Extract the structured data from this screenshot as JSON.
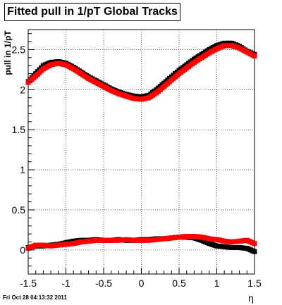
{
  "chart_data": {
    "type": "scatter",
    "title": "Fitted pull in 1/pT  Global Tracks",
    "xlabel": "η",
    "ylabel": "pull in 1/pT",
    "xlim": [
      -1.5,
      1.5
    ],
    "ylim": [
      -0.3,
      2.75
    ],
    "grid": true,
    "xticks": [
      -1.5,
      -1,
      -0.5,
      0,
      0.5,
      1,
      1.5
    ],
    "xtick_labels": [
      "-1.5",
      "-1",
      "-0.5",
      "0",
      "0.5",
      "1",
      "1.5"
    ],
    "yticks": [
      0,
      0.5,
      1,
      1.5,
      2,
      2.5
    ],
    "ytick_labels": [
      "0",
      "0.5",
      "1",
      "1.5",
      "2",
      "2.5"
    ],
    "series": [
      {
        "color": "#000000",
        "marker": "square",
        "x": [
          -1.5,
          -1.4,
          -1.3,
          -1.2,
          -1.1,
          -1.0,
          -0.9,
          -0.8,
          -0.7,
          -0.6,
          -0.5,
          -0.4,
          -0.3,
          -0.2,
          -0.1,
          0.0,
          0.1,
          0.2,
          0.3,
          0.4,
          0.5,
          0.6,
          0.7,
          0.8,
          0.9,
          1.0,
          1.1,
          1.2,
          1.3,
          1.4,
          1.5
        ],
        "y": [
          2.1,
          2.2,
          2.3,
          2.34,
          2.35,
          2.33,
          2.28,
          2.22,
          2.16,
          2.11,
          2.06,
          2.01,
          1.97,
          1.94,
          1.92,
          1.91,
          1.93,
          2.0,
          2.08,
          2.16,
          2.24,
          2.31,
          2.38,
          2.44,
          2.5,
          2.55,
          2.58,
          2.58,
          2.54,
          2.48,
          2.44
        ]
      },
      {
        "color": "#ff0000",
        "marker": "square",
        "x": [
          -1.5,
          -1.4,
          -1.3,
          -1.2,
          -1.1,
          -1.0,
          -0.9,
          -0.8,
          -0.7,
          -0.6,
          -0.5,
          -0.4,
          -0.3,
          -0.2,
          -0.1,
          0.0,
          0.1,
          0.2,
          0.3,
          0.4,
          0.5,
          0.6,
          0.7,
          0.8,
          0.9,
          1.0,
          1.1,
          1.2,
          1.3,
          1.4,
          1.5
        ],
        "y": [
          2.09,
          2.17,
          2.26,
          2.31,
          2.33,
          2.31,
          2.26,
          2.2,
          2.14,
          2.09,
          2.04,
          1.99,
          1.95,
          1.92,
          1.89,
          1.88,
          1.9,
          1.96,
          2.04,
          2.12,
          2.2,
          2.27,
          2.34,
          2.4,
          2.46,
          2.51,
          2.55,
          2.55,
          2.52,
          2.47,
          2.42
        ]
      },
      {
        "color": "#000000",
        "marker": "square",
        "x": [
          -1.5,
          -1.4,
          -1.3,
          -1.2,
          -1.1,
          -1.0,
          -0.9,
          -0.8,
          -0.7,
          -0.6,
          -0.5,
          -0.4,
          -0.3,
          -0.2,
          -0.1,
          0.0,
          0.1,
          0.2,
          0.3,
          0.4,
          0.5,
          0.6,
          0.7,
          0.8,
          0.9,
          1.0,
          1.1,
          1.2,
          1.3,
          1.4,
          1.5
        ],
        "y": [
          0.03,
          0.05,
          0.05,
          0.06,
          0.07,
          0.09,
          0.11,
          0.12,
          0.12,
          0.13,
          0.12,
          0.12,
          0.13,
          0.12,
          0.12,
          0.13,
          0.13,
          0.14,
          0.14,
          0.15,
          0.16,
          0.16,
          0.15,
          0.12,
          0.08,
          0.05,
          0.04,
          0.03,
          0.03,
          0.02,
          -0.02
        ]
      },
      {
        "color": "#ff0000",
        "marker": "square",
        "x": [
          -1.5,
          -1.4,
          -1.3,
          -1.2,
          -1.1,
          -1.0,
          -0.9,
          -0.8,
          -0.7,
          -0.6,
          -0.5,
          -0.4,
          -0.3,
          -0.2,
          -0.1,
          0.0,
          0.1,
          0.2,
          0.3,
          0.4,
          0.5,
          0.6,
          0.7,
          0.8,
          0.9,
          1.0,
          1.1,
          1.2,
          1.3,
          1.4,
          1.5
        ],
        "y": [
          0.02,
          0.06,
          0.06,
          0.05,
          0.06,
          0.07,
          0.08,
          0.1,
          0.11,
          0.12,
          0.12,
          0.12,
          0.12,
          0.13,
          0.12,
          0.12,
          0.12,
          0.13,
          0.14,
          0.15,
          0.16,
          0.17,
          0.17,
          0.16,
          0.14,
          0.13,
          0.11,
          0.1,
          0.11,
          0.12,
          0.08
        ]
      }
    ]
  },
  "footer": "Fri Oct 28 04:13:32 2011"
}
